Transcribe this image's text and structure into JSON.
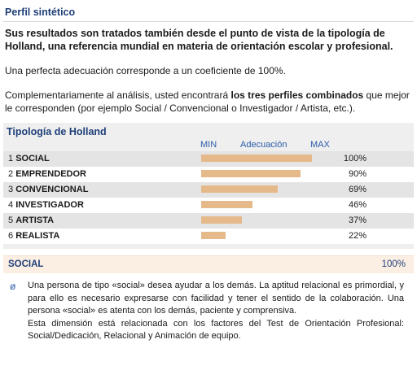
{
  "section": {
    "title": "Perfil sintético",
    "intro": "Sus resultados son tratados también desde el punto de vista de la tipología de Holland, una referencia mundial en materia de orientación escolar y profesional.",
    "adequacy": "Una perfecta adecuación corresponde a un coeficiente de 100%.",
    "complement_pre": "Complementariamente al análisis, usted encontrará ",
    "complement_bold": "los tres perfiles combinados",
    "complement_post": " que mejor le corresponden (por ejemplo Social / Convencional o Investigador / Artista, etc.)."
  },
  "holland": {
    "title": "Tipología de Holland",
    "legend": {
      "min": "MIN",
      "mid": "Adecuación",
      "max": "MAX"
    },
    "rows": [
      {
        "num": "1",
        "name": "SOCIAL",
        "pct_label": "100%",
        "value": 100
      },
      {
        "num": "2",
        "name": "EMPRENDEDOR",
        "pct_label": "90%",
        "value": 90
      },
      {
        "num": "3",
        "name": "CONVENCIONAL",
        "pct_label": "69%",
        "value": 69
      },
      {
        "num": "4",
        "name": "INVESTIGADOR",
        "pct_label": "46%",
        "value": 46
      },
      {
        "num": "5",
        "name": "ARTISTA",
        "pct_label": "37%",
        "value": 37
      },
      {
        "num": "6",
        "name": "REALISTA",
        "pct_label": "22%",
        "value": 22
      }
    ],
    "bar_color": "#e6b98a"
  },
  "summary": {
    "name": "SOCIAL",
    "value": "100%"
  },
  "description": {
    "icon": "circle-slash-bullet-icon",
    "text1": "Una persona de tipo «social» desea ayudar a los demás. La aptitud relacional es primordial, y para ello es necesario expresarse con facilidad y tener el sentido de la colaboración. Una persona «social» es atenta con los demás, paciente y comprensiva.",
    "text2": "Esta dimensión está relacionada con los factores del Test de Orientación Profesional: Social/Dedicación, Relacional y Animación de equipo."
  }
}
